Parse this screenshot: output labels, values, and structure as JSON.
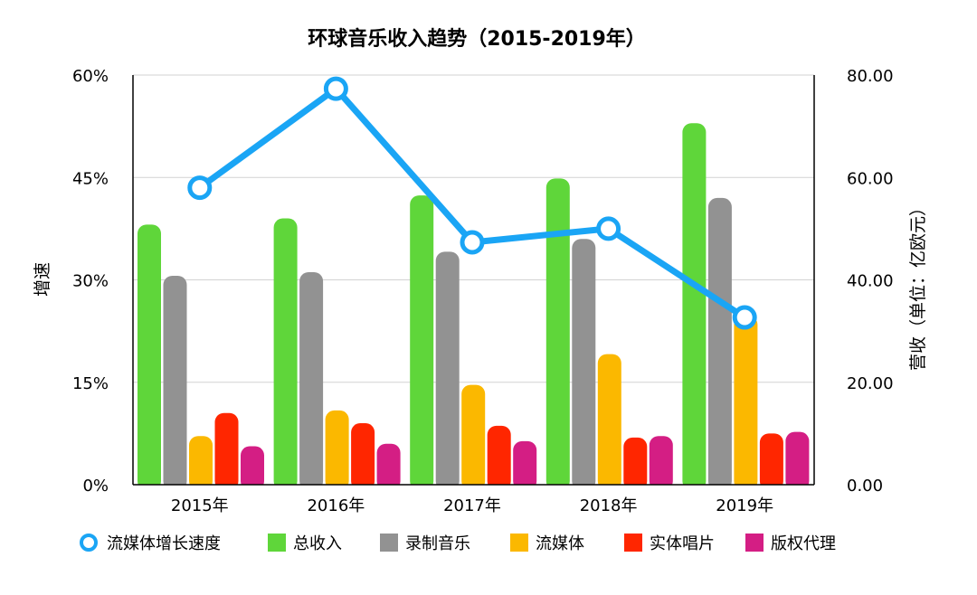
{
  "chart_data": {
    "type": "bar",
    "title": "环球音乐收入趋势（2015-2019年）",
    "categories": [
      "2015年",
      "2016年",
      "2017年",
      "2018年",
      "2019年"
    ],
    "series": [
      {
        "name": "总收入",
        "axis": "right",
        "color": "#5fd63a",
        "values": [
          50.8,
          52.0,
          56.5,
          59.8,
          70.6
        ]
      },
      {
        "name": "录制音乐",
        "axis": "right",
        "color": "#929292",
        "values": [
          40.8,
          41.5,
          45.5,
          48.0,
          56.0
        ]
      },
      {
        "name": "流媒体",
        "axis": "right",
        "color": "#fbb800",
        "values": [
          9.5,
          14.5,
          19.5,
          25.5,
          33.0
        ]
      },
      {
        "name": "实体唱片",
        "axis": "right",
        "color": "#ff2600",
        "values": [
          14.0,
          12.0,
          11.5,
          9.2,
          10.0
        ]
      },
      {
        "name": "版权代理",
        "axis": "right",
        "color": "#d41e84",
        "values": [
          7.5,
          8.0,
          8.5,
          9.5,
          10.3
        ]
      }
    ],
    "line_series": {
      "name": "流媒体增长速度",
      "axis": "left",
      "type": "line",
      "color": "#1aa5f5",
      "values": [
        43.5,
        58.0,
        35.5,
        37.5,
        24.5
      ]
    },
    "left_axis": {
      "label": "增速",
      "ylim": [
        0,
        60
      ],
      "ticks": [
        "0%",
        "15%",
        "30%",
        "45%",
        "60%"
      ],
      "tick_values": [
        0,
        15,
        30,
        45,
        60
      ]
    },
    "right_axis": {
      "label": "营收（单位：亿欧元）",
      "ylim": [
        0,
        80
      ],
      "ticks": [
        "0.00",
        "20.00",
        "40.00",
        "60.00",
        "80.00"
      ],
      "tick_values": [
        0,
        20,
        40,
        60,
        80
      ]
    },
    "grid": true,
    "legend_position": "bottom"
  }
}
